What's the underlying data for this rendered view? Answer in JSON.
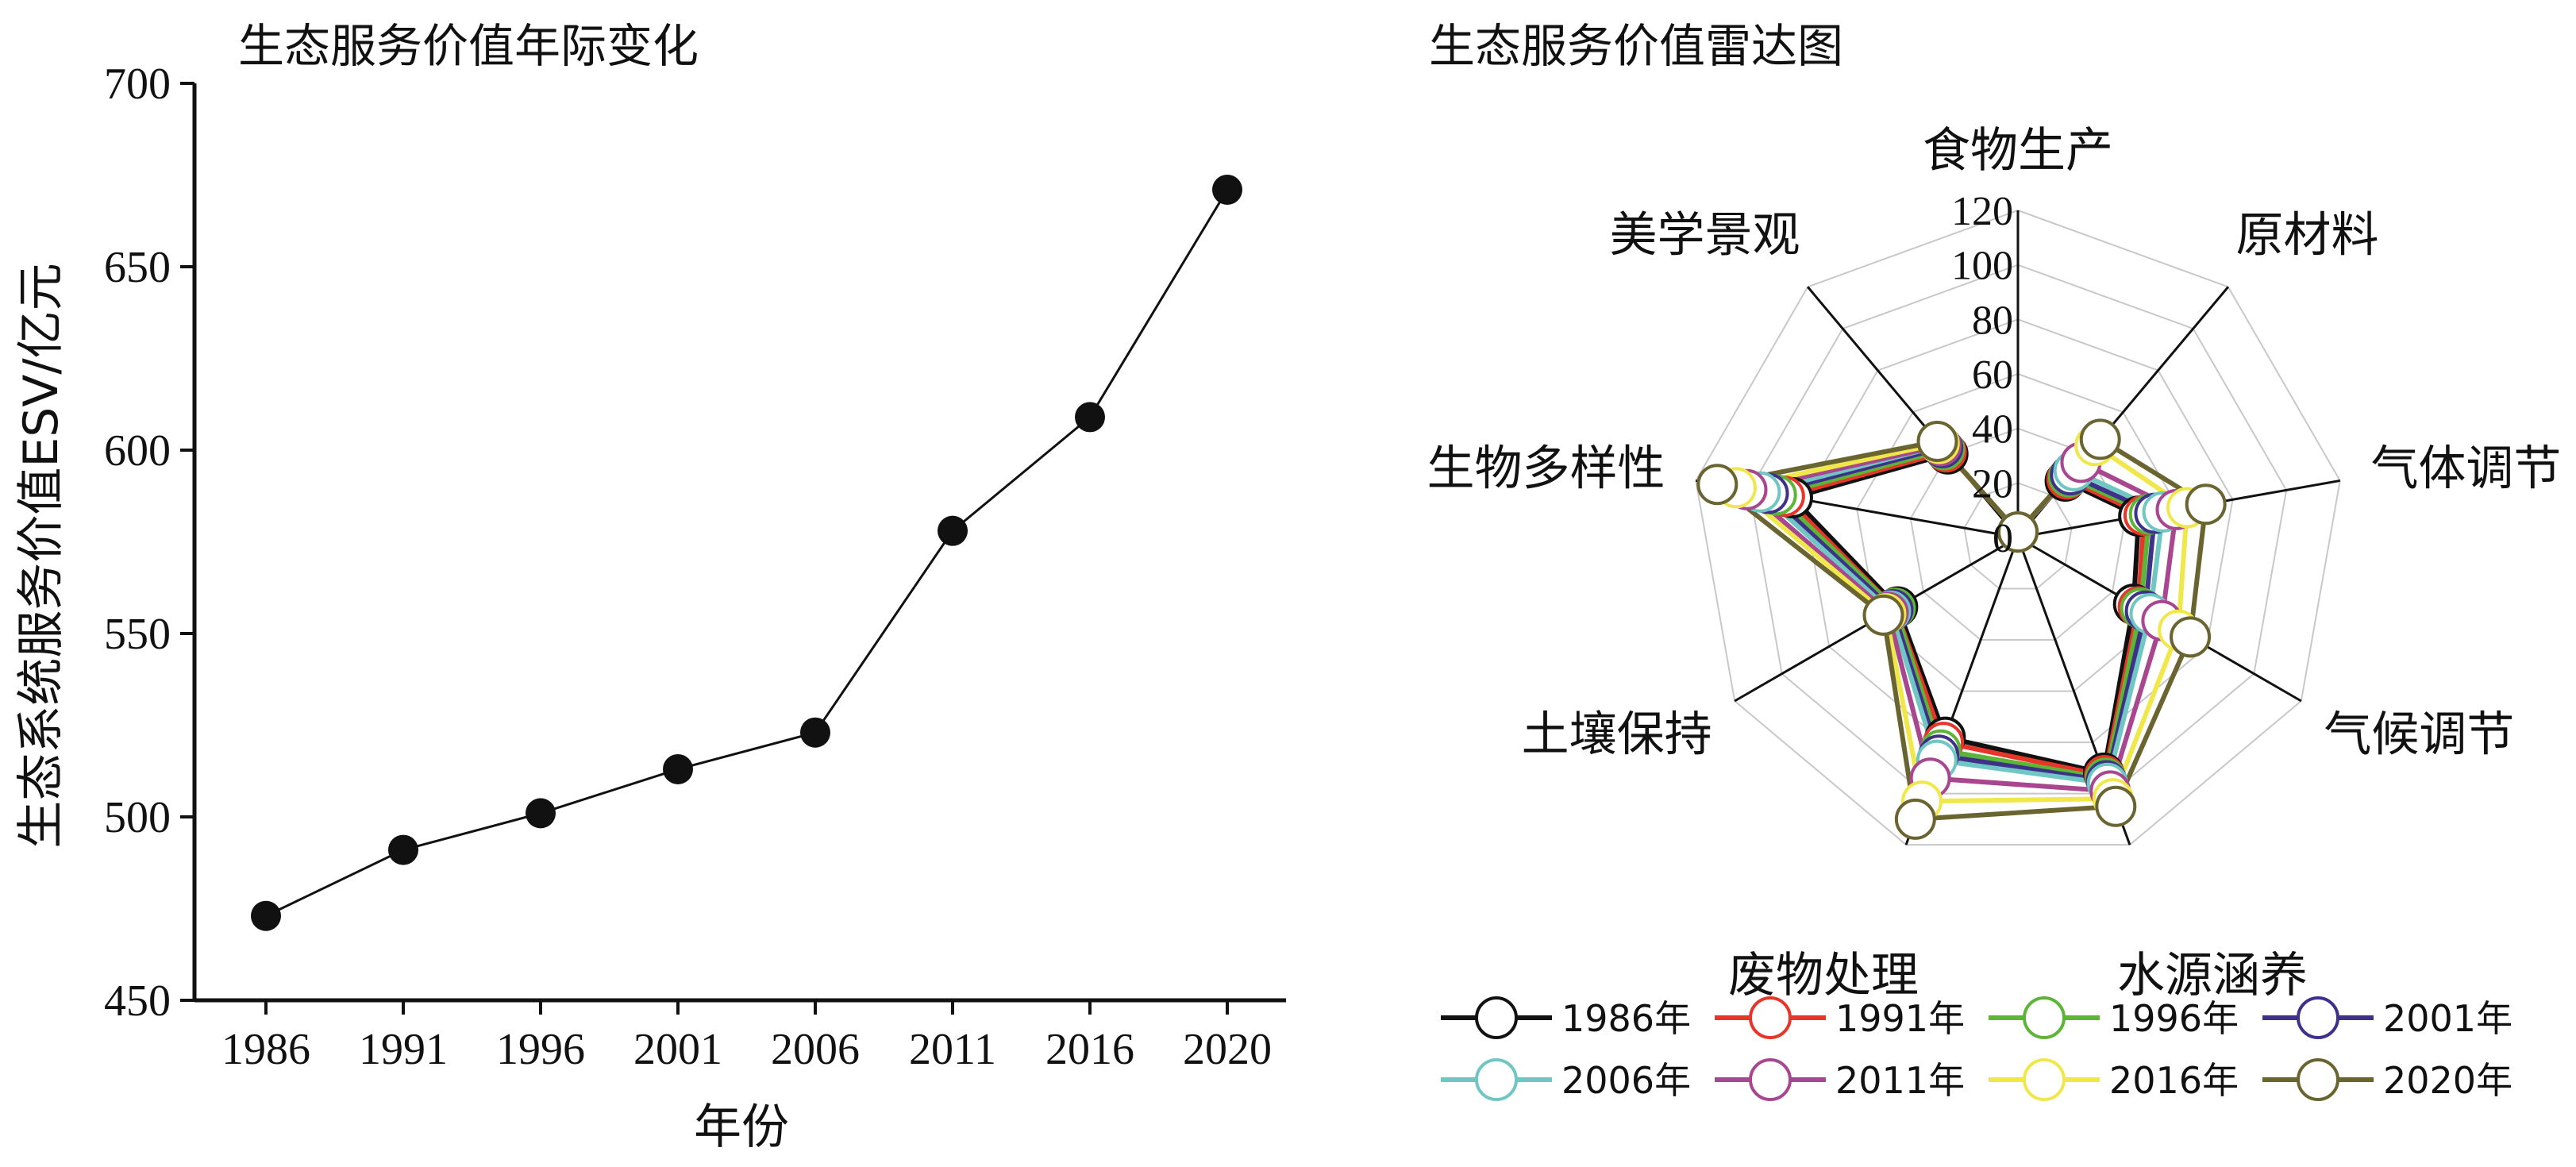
{
  "chart_data": [
    {
      "type": "line",
      "title": "生态服务价值年际变化",
      "xlabel": "年份",
      "ylabel": "生态系统服务价值ESV/亿元",
      "x": [
        "1986",
        "1991",
        "1996",
        "2001",
        "2006",
        "2011",
        "2016",
        "2020"
      ],
      "series": [
        {
          "values": [
            473,
            491,
            501,
            513,
            523,
            578,
            609,
            671
          ]
        }
      ],
      "ylim": [
        450,
        700
      ],
      "yticks": [
        "450",
        "500",
        "550",
        "600",
        "650",
        "700"
      ],
      "line_color": "#111111",
      "marker_color": "#111111"
    },
    {
      "type": "radar",
      "title": "生态服务价值雷达图",
      "axes": [
        "食物生产",
        "原材料",
        "气体调节",
        "气候调节",
        "水源涵养",
        "废物处理",
        "土壤保持",
        "生物多样性",
        "美学景观"
      ],
      "rlim": [
        0,
        120
      ],
      "rticks": [
        "0",
        "20",
        "40",
        "60",
        "80",
        "100",
        "120"
      ],
      "legend_position": "bottom",
      "series": [
        {
          "name": "1986年",
          "color": "#111111",
          "values": [
            2,
            27,
            45,
            49,
            92,
            78,
            51,
            84,
            40
          ]
        },
        {
          "name": "1991年",
          "color": "#e8352a",
          "values": [
            2,
            28,
            47,
            51,
            93,
            80,
            52,
            87,
            41
          ]
        },
        {
          "name": "1996年",
          "color": "#5cb536",
          "values": [
            2,
            29,
            49,
            52,
            94,
            83,
            52,
            90,
            42
          ]
        },
        {
          "name": "2001年",
          "color": "#3d3189",
          "values": [
            2,
            30,
            51,
            54,
            95,
            85,
            53,
            93,
            43
          ]
        },
        {
          "name": "2006年",
          "color": "#6fc6c2",
          "values": [
            2,
            32,
            54,
            56,
            96,
            87,
            54,
            96,
            44
          ]
        },
        {
          "name": "2011年",
          "color": "#a8468f",
          "values": [
            2,
            36,
            59,
            61,
            99,
            94,
            55,
            101,
            44
          ]
        },
        {
          "name": "2016年",
          "color": "#f0e84a",
          "values": [
            2,
            44,
            63,
            68,
            102,
            103,
            56,
            105,
            45
          ]
        },
        {
          "name": "2020年",
          "color": "#6a6430",
          "values": [
            2,
            47,
            70,
            73,
            105,
            110,
            57,
            112,
            46
          ]
        }
      ]
    }
  ]
}
